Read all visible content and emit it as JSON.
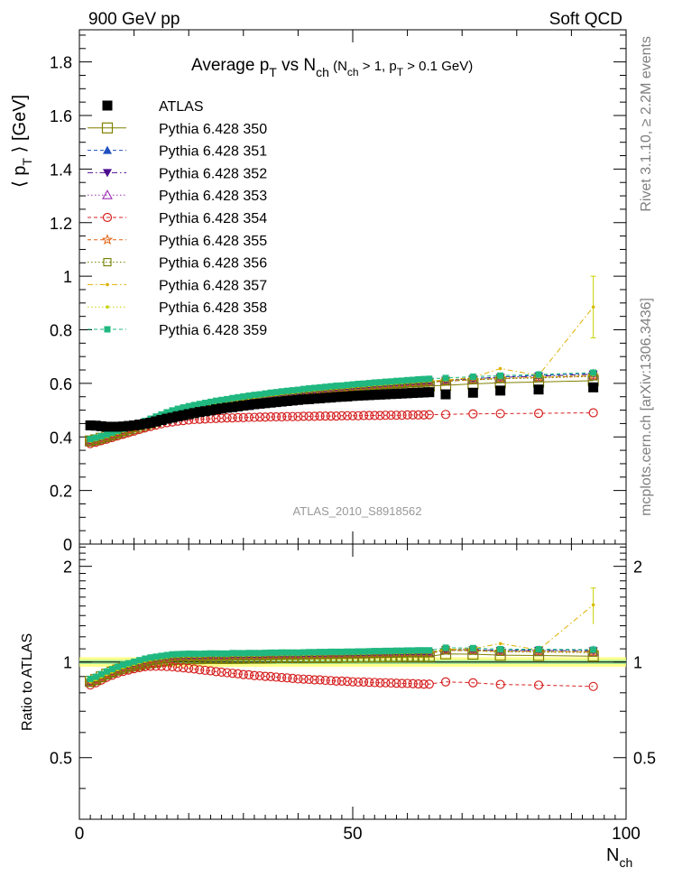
{
  "header": {
    "left": "900 GeV pp",
    "right": "Soft QCD"
  },
  "side_labels": {
    "rivet": "Rivet 3.1.10, ≥ 2.2M events",
    "mcplots": "mcplots.cern.ch [arXiv:1306.3436]"
  },
  "chart_data": [
    {
      "type": "scatter",
      "title": "Average p_T vs N_ch (N_ch > 1, p_T > 0.1 GeV)",
      "title_parts": {
        "main_a": "Average p",
        "sub_a": "T",
        "main_b": " vs N",
        "sub_b": "ch",
        "cut_a": " (N",
        "cut_sub": "ch",
        "cut_b": " > 1, p",
        "cut_sub2": "T",
        "cut_c": " > 0.1 GeV)"
      },
      "ylabel_parts": {
        "open": "⟨ p",
        "sub": "T",
        "close": " ⟩ [GeV]"
      },
      "xlim": [
        0,
        100
      ],
      "ylim": [
        0,
        1.92
      ],
      "yticks": [
        0,
        0.2,
        0.4,
        0.6,
        0.8,
        1,
        1.2,
        1.4,
        1.6,
        1.8
      ],
      "ytick_labels": [
        "0",
        "0.2",
        "0.4",
        "0.6",
        "0.8",
        "1",
        "1.2",
        "1.4",
        "1.6",
        "1.8"
      ],
      "watermark": "ATLAS_2010_S8918562",
      "legend_position": "top-left",
      "x": [
        2,
        3,
        4,
        5,
        6,
        7,
        8,
        9,
        10,
        11,
        12,
        13,
        14,
        15,
        16,
        17,
        18,
        19,
        20,
        21,
        22,
        23,
        24,
        25,
        26,
        27,
        28,
        29,
        30,
        31,
        32,
        33,
        34,
        35,
        36,
        37,
        38,
        39,
        40,
        41,
        42,
        43,
        44,
        45,
        46,
        47,
        48,
        49,
        50,
        51,
        52,
        53,
        54,
        55,
        56,
        57,
        58,
        59,
        60,
        61,
        62,
        63,
        64,
        67,
        72,
        77,
        84,
        94
      ],
      "series": [
        {
          "name": "ATLAS",
          "color": "#000000",
          "marker": "filled-square",
          "line": "none",
          "values": [
            0.443,
            0.442,
            0.44,
            0.438,
            0.438,
            0.438,
            0.439,
            0.441,
            0.443,
            0.446,
            0.449,
            0.453,
            0.458,
            0.463,
            0.468,
            0.472,
            0.477,
            0.481,
            0.485,
            0.489,
            0.493,
            0.496,
            0.499,
            0.503,
            0.506,
            0.509,
            0.511,
            0.514,
            0.517,
            0.519,
            0.522,
            0.524,
            0.526,
            0.528,
            0.53,
            0.532,
            0.534,
            0.536,
            0.538,
            0.54,
            0.541,
            0.543,
            0.544,
            0.546,
            0.547,
            0.549,
            0.55,
            0.551,
            0.553,
            0.554,
            0.555,
            0.556,
            0.557,
            0.558,
            0.559,
            0.56,
            0.561,
            0.562,
            0.563,
            0.564,
            0.565,
            0.566,
            0.567,
            0.559,
            0.565,
            0.573,
            0.577,
            0.585
          ]
        },
        {
          "name": "Pythia 6.428 350",
          "color": "#808000",
          "marker": "open-square",
          "line": "solid",
          "values": [
            0.385,
            0.389,
            0.395,
            0.401,
            0.407,
            0.413,
            0.419,
            0.425,
            0.431,
            0.437,
            0.444,
            0.451,
            0.458,
            0.466,
            0.473,
            0.48,
            0.486,
            0.492,
            0.497,
            0.501,
            0.505,
            0.509,
            0.513,
            0.516,
            0.519,
            0.522,
            0.525,
            0.528,
            0.531,
            0.534,
            0.537,
            0.539,
            0.542,
            0.544,
            0.547,
            0.549,
            0.551,
            0.553,
            0.555,
            0.557,
            0.559,
            0.561,
            0.562,
            0.564,
            0.566,
            0.567,
            0.569,
            0.571,
            0.572,
            0.574,
            0.575,
            0.577,
            0.578,
            0.579,
            0.581,
            0.582,
            0.583,
            0.585,
            0.586,
            0.587,
            0.588,
            0.589,
            0.59,
            0.593,
            0.598,
            0.602,
            0.605,
            0.61
          ]
        },
        {
          "name": "Pythia 6.428 351",
          "color": "#1f4fbf",
          "marker": "filled-triangle-up",
          "line": "dashed",
          "values": [
            0.383,
            0.388,
            0.394,
            0.4,
            0.407,
            0.414,
            0.421,
            0.428,
            0.435,
            0.443,
            0.451,
            0.459,
            0.467,
            0.475,
            0.483,
            0.49,
            0.496,
            0.501,
            0.506,
            0.51,
            0.514,
            0.518,
            0.522,
            0.526,
            0.529,
            0.532,
            0.536,
            0.539,
            0.542,
            0.545,
            0.548,
            0.55,
            0.553,
            0.556,
            0.558,
            0.561,
            0.563,
            0.565,
            0.567,
            0.57,
            0.572,
            0.574,
            0.576,
            0.578,
            0.58,
            0.582,
            0.583,
            0.585,
            0.587,
            0.589,
            0.59,
            0.592,
            0.594,
            0.595,
            0.597,
            0.598,
            0.6,
            0.601,
            0.603,
            0.604,
            0.606,
            0.607,
            0.608,
            0.612,
            0.618,
            0.624,
            0.63,
            0.638
          ]
        },
        {
          "name": "Pythia 6.428 352",
          "color": "#4b0c8f",
          "marker": "filled-triangle-down",
          "line": "dash-dot",
          "values": [
            0.382,
            0.387,
            0.393,
            0.399,
            0.406,
            0.413,
            0.42,
            0.427,
            0.434,
            0.442,
            0.45,
            0.458,
            0.466,
            0.474,
            0.482,
            0.489,
            0.495,
            0.5,
            0.505,
            0.509,
            0.513,
            0.517,
            0.521,
            0.525,
            0.528,
            0.531,
            0.535,
            0.538,
            0.541,
            0.544,
            0.547,
            0.549,
            0.552,
            0.555,
            0.557,
            0.56,
            0.562,
            0.564,
            0.566,
            0.569,
            0.571,
            0.573,
            0.575,
            0.577,
            0.579,
            0.581,
            0.582,
            0.584,
            0.586,
            0.588,
            0.589,
            0.591,
            0.593,
            0.594,
            0.596,
            0.597,
            0.599,
            0.6,
            0.602,
            0.603,
            0.605,
            0.606,
            0.607,
            0.611,
            0.617,
            0.622,
            0.627,
            0.634
          ]
        },
        {
          "name": "Pythia 6.428 353",
          "color": "#9b2fb2",
          "marker": "open-triangle-up",
          "line": "dotted",
          "values": [
            0.382,
            0.387,
            0.393,
            0.399,
            0.406,
            0.413,
            0.42,
            0.427,
            0.434,
            0.441,
            0.449,
            0.457,
            0.465,
            0.473,
            0.481,
            0.488,
            0.494,
            0.499,
            0.504,
            0.508,
            0.512,
            0.516,
            0.52,
            0.524,
            0.527,
            0.53,
            0.534,
            0.537,
            0.54,
            0.543,
            0.546,
            0.548,
            0.551,
            0.554,
            0.556,
            0.559,
            0.561,
            0.563,
            0.565,
            0.568,
            0.57,
            0.572,
            0.574,
            0.576,
            0.578,
            0.58,
            0.581,
            0.583,
            0.585,
            0.587,
            0.588,
            0.59,
            0.592,
            0.593,
            0.595,
            0.596,
            0.598,
            0.599,
            0.601,
            0.602,
            0.603,
            0.604,
            0.605,
            0.609,
            0.614,
            0.619,
            0.624,
            0.63
          ]
        },
        {
          "name": "Pythia 6.428 354",
          "color": "#d62020",
          "marker": "open-circle",
          "line": "dashed",
          "values": [
            0.375,
            0.38,
            0.386,
            0.392,
            0.398,
            0.404,
            0.41,
            0.416,
            0.422,
            0.428,
            0.434,
            0.439,
            0.444,
            0.449,
            0.453,
            0.456,
            0.459,
            0.461,
            0.463,
            0.465,
            0.466,
            0.467,
            0.468,
            0.469,
            0.47,
            0.471,
            0.471,
            0.472,
            0.472,
            0.473,
            0.473,
            0.474,
            0.474,
            0.475,
            0.475,
            0.475,
            0.476,
            0.476,
            0.476,
            0.477,
            0.477,
            0.477,
            0.478,
            0.478,
            0.478,
            0.478,
            0.479,
            0.479,
            0.479,
            0.479,
            0.48,
            0.48,
            0.48,
            0.48,
            0.481,
            0.481,
            0.481,
            0.481,
            0.482,
            0.482,
            0.482,
            0.482,
            0.483,
            0.484,
            0.486,
            0.487,
            0.488,
            0.49
          ]
        },
        {
          "name": "Pythia 6.428 355",
          "color": "#e06010",
          "marker": "open-star",
          "line": "dashed",
          "values": [
            0.381,
            0.386,
            0.392,
            0.398,
            0.405,
            0.412,
            0.419,
            0.426,
            0.433,
            0.441,
            0.449,
            0.457,
            0.465,
            0.473,
            0.481,
            0.488,
            0.494,
            0.499,
            0.503,
            0.507,
            0.511,
            0.515,
            0.519,
            0.523,
            0.526,
            0.529,
            0.533,
            0.536,
            0.539,
            0.542,
            0.545,
            0.547,
            0.55,
            0.553,
            0.555,
            0.558,
            0.56,
            0.562,
            0.564,
            0.567,
            0.569,
            0.571,
            0.573,
            0.575,
            0.577,
            0.579,
            0.58,
            0.582,
            0.584,
            0.586,
            0.587,
            0.589,
            0.591,
            0.592,
            0.594,
            0.595,
            0.597,
            0.598,
            0.6,
            0.601,
            0.602,
            0.603,
            0.604,
            0.608,
            0.613,
            0.618,
            0.622,
            0.628
          ]
        },
        {
          "name": "Pythia 6.428 356",
          "color": "#6f7f00",
          "marker": "open-square-small",
          "line": "dotted",
          "values": [
            0.381,
            0.386,
            0.392,
            0.398,
            0.405,
            0.412,
            0.419,
            0.426,
            0.433,
            0.44,
            0.448,
            0.456,
            0.464,
            0.472,
            0.48,
            0.487,
            0.493,
            0.498,
            0.503,
            0.507,
            0.511,
            0.515,
            0.519,
            0.523,
            0.526,
            0.529,
            0.533,
            0.536,
            0.539,
            0.542,
            0.545,
            0.547,
            0.55,
            0.553,
            0.555,
            0.558,
            0.56,
            0.562,
            0.564,
            0.567,
            0.569,
            0.571,
            0.573,
            0.575,
            0.577,
            0.579,
            0.58,
            0.582,
            0.584,
            0.586,
            0.587,
            0.589,
            0.591,
            0.592,
            0.594,
            0.595,
            0.597,
            0.598,
            0.6,
            0.601,
            0.602,
            0.603,
            0.604,
            0.608,
            0.613,
            0.617,
            0.62,
            0.626
          ]
        },
        {
          "name": "Pythia 6.428 357",
          "color": "#e0b000",
          "marker": "small-dot",
          "line": "dash-dot",
          "values": [
            0.384,
            0.389,
            0.395,
            0.401,
            0.408,
            0.415,
            0.422,
            0.429,
            0.436,
            0.444,
            0.452,
            0.46,
            0.468,
            0.476,
            0.484,
            0.491,
            0.497,
            0.502,
            0.507,
            0.511,
            0.515,
            0.519,
            0.523,
            0.527,
            0.53,
            0.533,
            0.537,
            0.54,
            0.543,
            0.546,
            0.549,
            0.551,
            0.554,
            0.557,
            0.559,
            0.562,
            0.564,
            0.566,
            0.568,
            0.571,
            0.573,
            0.575,
            0.577,
            0.579,
            0.581,
            0.583,
            0.584,
            0.586,
            0.588,
            0.59,
            0.591,
            0.593,
            0.595,
            0.596,
            0.598,
            0.599,
            0.601,
            0.602,
            0.604,
            0.605,
            0.607,
            0.608,
            0.609,
            0.612,
            0.622,
            0.655,
            0.63,
            0.885
          ]
        },
        {
          "name": "Pythia 6.428 358",
          "color": "#c8d200",
          "marker": "small-dot",
          "line": "dotted",
          "values": [
            0.383,
            0.388,
            0.394,
            0.4,
            0.407,
            0.414,
            0.421,
            0.428,
            0.435,
            0.443,
            0.451,
            0.459,
            0.467,
            0.475,
            0.483,
            0.49,
            0.496,
            0.501,
            0.506,
            0.51,
            0.514,
            0.518,
            0.522,
            0.526,
            0.529,
            0.532,
            0.536,
            0.539,
            0.542,
            0.545,
            0.548,
            0.55,
            0.553,
            0.556,
            0.558,
            0.561,
            0.563,
            0.565,
            0.567,
            0.57,
            0.572,
            0.574,
            0.576,
            0.578,
            0.58,
            0.582,
            0.583,
            0.585,
            0.587,
            0.589,
            0.59,
            0.592,
            0.594,
            0.595,
            0.597,
            0.598,
            0.6,
            0.601,
            0.603,
            0.604,
            0.606,
            0.607,
            0.608,
            0.611,
            0.616,
            0.62,
            0.624,
            0.631
          ]
        },
        {
          "name": "Pythia 6.428 359",
          "color": "#20b880",
          "marker": "filled-square-small",
          "line": "dashed",
          "values": [
            0.392,
            0.397,
            0.403,
            0.409,
            0.416,
            0.423,
            0.43,
            0.437,
            0.444,
            0.452,
            0.46,
            0.468,
            0.476,
            0.484,
            0.492,
            0.499,
            0.505,
            0.51,
            0.515,
            0.519,
            0.523,
            0.527,
            0.531,
            0.535,
            0.538,
            0.541,
            0.545,
            0.548,
            0.551,
            0.554,
            0.557,
            0.559,
            0.562,
            0.565,
            0.567,
            0.57,
            0.572,
            0.574,
            0.576,
            0.579,
            0.581,
            0.583,
            0.585,
            0.587,
            0.589,
            0.591,
            0.592,
            0.594,
            0.596,
            0.598,
            0.599,
            0.601,
            0.603,
            0.604,
            0.606,
            0.607,
            0.609,
            0.61,
            0.612,
            0.613,
            0.615,
            0.616,
            0.617,
            0.62,
            0.625,
            0.629,
            0.633,
            0.64
          ]
        }
      ],
      "error_357_last": [
        0.77,
        1.0
      ]
    },
    {
      "type": "scatter",
      "ylabel": "Ratio to ATLAS",
      "xlabel_parts": {
        "main": "N",
        "sub": "ch"
      },
      "xlim": [
        0,
        100
      ],
      "ylim": [
        0.32,
        2.35
      ],
      "yticks": [
        0.5,
        1,
        2
      ],
      "ytick_labels": [
        "0.5",
        "1",
        "2"
      ],
      "xticks": [
        0,
        50,
        100
      ],
      "xtick_labels": [
        "0",
        "50",
        "100"
      ],
      "band_inner": [
        0.985,
        1.015
      ],
      "band_outer": [
        0.965,
        1.035
      ]
    }
  ]
}
